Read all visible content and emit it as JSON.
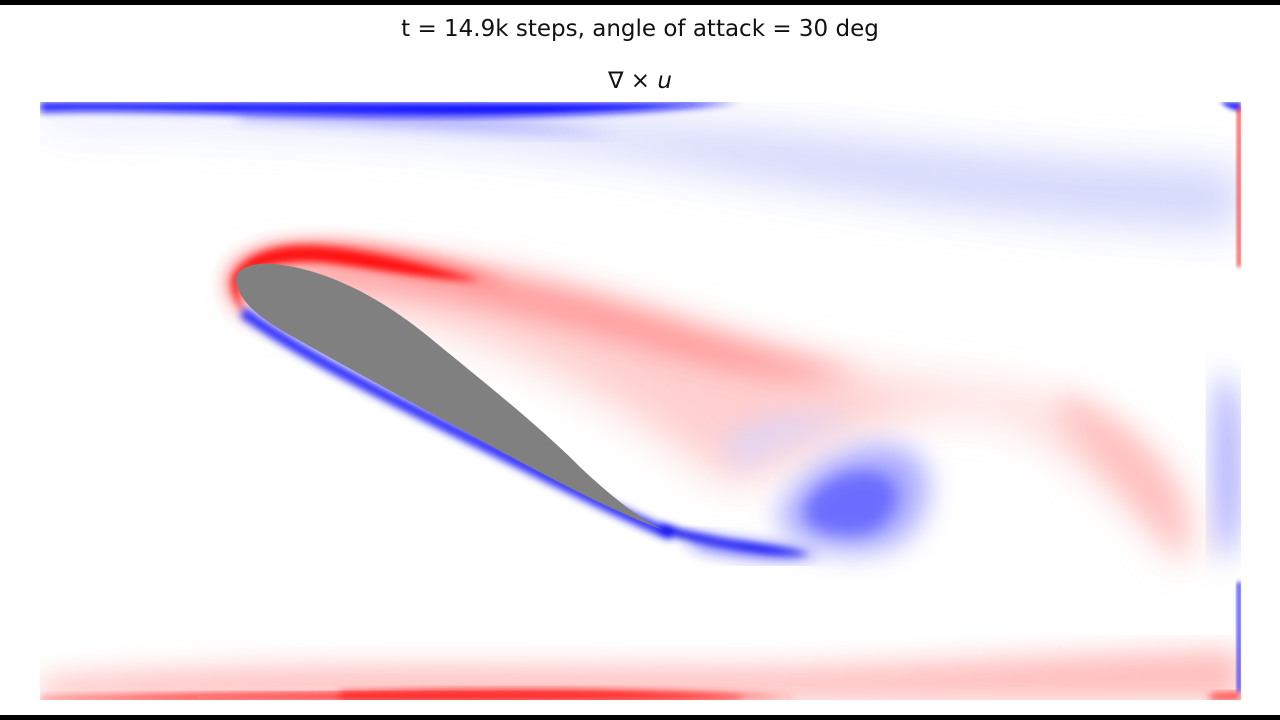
{
  "figure": {
    "suptitle": "t = 14.9k steps, angle of attack = 30 deg",
    "axes_title_operator": "∇ × ",
    "axes_title_variable": "u"
  },
  "colormap": {
    "negative": "#0000ff",
    "zero": "#ffffff",
    "positive": "#ff0000",
    "obstacle": "#808080"
  }
}
